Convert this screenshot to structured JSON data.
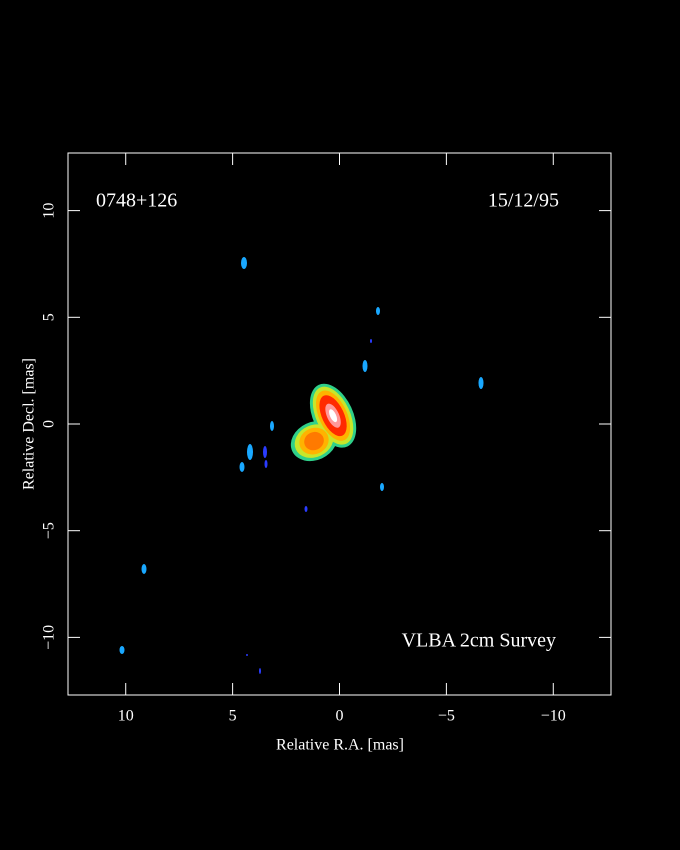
{
  "chart_data": {
    "type": "image",
    "title": "0748+126",
    "subtitle": "15/12/95",
    "annotation": "VLBA 2cm Survey",
    "x_label": "Relative R.A. [mas]",
    "y_label": "Relative Decl. [mas]",
    "xlim": [
      12.7,
      -12.7
    ],
    "ylim": [
      -12.7,
      12.7
    ],
    "xticks": [
      10,
      5,
      0,
      {
        "value": -5,
        "label": "−5"
      },
      {
        "value": -10,
        "label": "−10"
      }
    ],
    "yticks": [
      10,
      5,
      0,
      {
        "value": -5,
        "label": "−5"
      },
      {
        "value": -10,
        "label": "−10"
      }
    ]
  }
}
